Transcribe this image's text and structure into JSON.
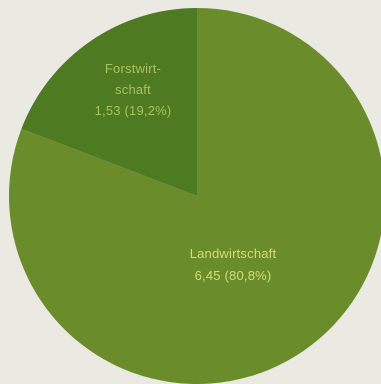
{
  "chart_data": {
    "type": "pie",
    "start_angle_deg": 0,
    "direction": "counterclockwise",
    "slices": [
      {
        "label_lines": [
          "Landwirtschaft",
          "6,45 (80,8%)"
        ],
        "value": 6.45,
        "percent": 80.8,
        "color": "#6b8c2a",
        "label_color": "#d2dc7a"
      },
      {
        "label_lines": [
          "Forstwirt-",
          "schaft",
          "1,53 (19,2%)"
        ],
        "value": 1.53,
        "percent": 19.2,
        "color": "#4e7a22",
        "label_color": "#a9c260"
      }
    ]
  }
}
